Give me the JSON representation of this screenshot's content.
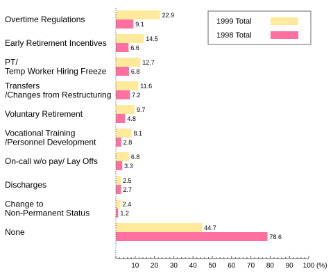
{
  "chart_data": {
    "type": "bar",
    "orientation": "horizontal",
    "categories": [
      [
        "Overtime Regulations"
      ],
      [
        "Early Retirement Incentives"
      ],
      [
        "PT/",
        "Temp Worker Hiring Freeze"
      ],
      [
        "Transfers",
        "/Changes from Restructuring"
      ],
      [
        "Voluntary Retirement"
      ],
      [
        "Vocational Training",
        "/Personnel Development"
      ],
      [
        "On-call w/o pay/ Lay Offs"
      ],
      [
        "Discharges"
      ],
      [
        "Change to",
        "Non-Permanent Status"
      ],
      [
        "None"
      ]
    ],
    "series": [
      {
        "name": "1999 Total",
        "color": "#ffe99a",
        "values": [
          22.9,
          14.5,
          12.7,
          11.6,
          9.7,
          8.1,
          6.8,
          2.5,
          2.4,
          44.7
        ]
      },
      {
        "name": "1998 Total",
        "color": "#ff6f9f",
        "values": [
          9.1,
          6.6,
          6.8,
          7.2,
          4.8,
          2.8,
          3.3,
          2.7,
          1.2,
          78.6
        ]
      }
    ],
    "xlim": [
      0,
      100
    ],
    "xticks": [
      10,
      20,
      30,
      40,
      50,
      60,
      70,
      80,
      90,
      100
    ],
    "xunit": "(%)",
    "legend_position": "top-right",
    "grid": false
  }
}
